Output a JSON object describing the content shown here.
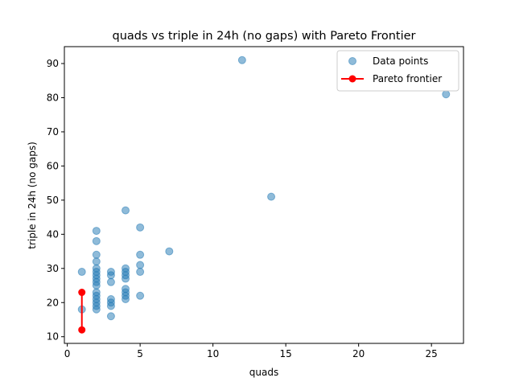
{
  "chart_data": {
    "type": "scatter",
    "title": "quads vs triple in 24h (no gaps) with Pareto Frontier",
    "xlabel": "quads",
    "ylabel": "triple in 24h (no gaps)",
    "xlim": [
      -0.2,
      27.2
    ],
    "ylim": [
      8.05,
      94.95
    ],
    "xticks": [
      0,
      5,
      10,
      15,
      20,
      25
    ],
    "yticks": [
      10,
      20,
      30,
      40,
      50,
      60,
      70,
      80,
      90
    ],
    "grid": false,
    "legend": {
      "placement": "top-right"
    },
    "colors": {
      "scatter": "#1f77b4",
      "frontier": "#ff0000"
    },
    "series": [
      {
        "name": "Data points",
        "kind": "scatter",
        "points": [
          [
            1,
            29
          ],
          [
            1,
            18
          ],
          [
            2,
            41
          ],
          [
            2,
            38
          ],
          [
            2,
            34
          ],
          [
            2,
            32
          ],
          [
            2,
            30
          ],
          [
            2,
            29
          ],
          [
            2,
            28
          ],
          [
            2,
            27
          ],
          [
            2,
            26
          ],
          [
            2,
            25
          ],
          [
            2,
            23
          ],
          [
            2,
            22
          ],
          [
            2,
            21
          ],
          [
            2,
            20
          ],
          [
            2,
            19
          ],
          [
            2,
            18
          ],
          [
            3,
            29
          ],
          [
            3,
            28
          ],
          [
            3,
            26
          ],
          [
            3,
            21
          ],
          [
            3,
            20
          ],
          [
            3,
            19
          ],
          [
            3,
            16
          ],
          [
            4,
            47
          ],
          [
            4,
            30
          ],
          [
            4,
            29
          ],
          [
            4,
            28
          ],
          [
            4,
            27
          ],
          [
            4,
            24
          ],
          [
            4,
            23
          ],
          [
            4,
            22
          ],
          [
            4,
            21
          ],
          [
            5,
            42
          ],
          [
            5,
            34
          ],
          [
            5,
            31
          ],
          [
            5,
            29
          ],
          [
            5,
            22
          ],
          [
            7,
            35
          ],
          [
            12,
            91
          ],
          [
            14,
            51
          ],
          [
            26,
            81
          ]
        ]
      },
      {
        "name": "Pareto frontier",
        "kind": "line",
        "points": [
          [
            1,
            23
          ],
          [
            1,
            12
          ]
        ]
      }
    ]
  }
}
